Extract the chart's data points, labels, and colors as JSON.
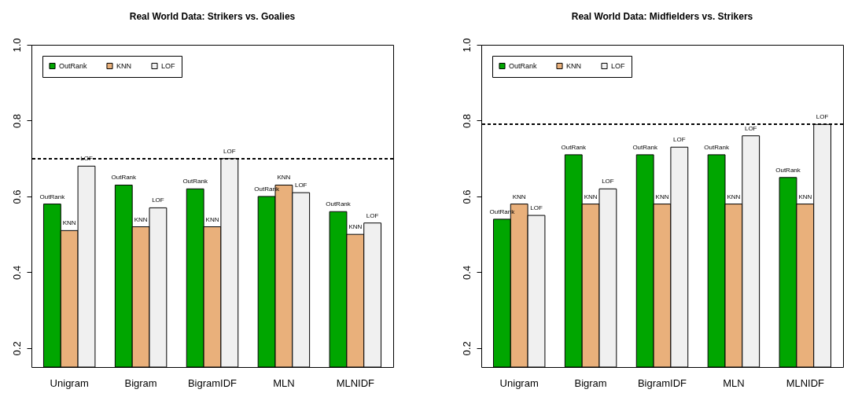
{
  "chart_data": [
    {
      "type": "bar",
      "title": "Real World Data: Strikers vs. Goalies",
      "categories": [
        "Unigram",
        "Bigram",
        "BigramIDF",
        "MLN",
        "MLNIDF"
      ],
      "series": [
        {
          "name": "OutRank",
          "color": "#00a600",
          "values": [
            0.58,
            0.63,
            0.62,
            0.6,
            0.56
          ],
          "value_labels": [
            "OutRank",
            "OutRank",
            "OutRank",
            "OutRank",
            "OutRank"
          ]
        },
        {
          "name": "KNN",
          "color": "#e9b07b",
          "values": [
            0.51,
            0.52,
            0.52,
            0.63,
            0.5
          ],
          "value_labels": [
            "KNN",
            "KNN",
            "KNN",
            "KNN",
            "KNN"
          ]
        },
        {
          "name": "LOF",
          "color": "#f0f0f0",
          "values": [
            0.68,
            0.57,
            0.7,
            0.61,
            0.53
          ],
          "value_labels": [
            "LOF",
            "LOF",
            "LOF",
            "LOF",
            "LOF"
          ]
        }
      ],
      "ylim": [
        0.15,
        1.0
      ],
      "yticks": [
        0.2,
        0.4,
        0.6,
        0.8,
        {
          "value": 1,
          "label": "1.0"
        }
      ],
      "grid": false,
      "legend": "top left",
      "ref_lines": [
        {
          "axis": "y",
          "value": 0.7,
          "line_style": "dashed"
        }
      ]
    },
    {
      "type": "bar",
      "title": "Real World Data: Midfielders vs. Strikers",
      "categories": [
        "Unigram",
        "Bigram",
        "BigramIDF",
        "MLN",
        "MLNIDF"
      ],
      "series": [
        {
          "name": "OutRank",
          "color": "#00a600",
          "values": [
            0.54,
            0.71,
            0.71,
            0.71,
            0.65
          ],
          "value_labels": [
            "OutRank",
            "OutRank",
            "OutRank",
            "OutRank",
            "OutRank"
          ]
        },
        {
          "name": "KNN",
          "color": "#e9b07b",
          "values": [
            0.58,
            0.58,
            0.58,
            0.58,
            0.58
          ],
          "value_labels": [
            "KNN",
            "KNN",
            "KNN",
            "KNN",
            "KNN"
          ]
        },
        {
          "name": "LOF",
          "color": "#f0f0f0",
          "values": [
            0.55,
            0.62,
            0.73,
            0.76,
            0.79
          ],
          "value_labels": [
            "LOF",
            "LOF",
            "LOF",
            "LOF",
            "LOF"
          ]
        }
      ],
      "ylim": [
        0.15,
        1.0
      ],
      "yticks": [
        0.2,
        0.4,
        0.6,
        0.8,
        {
          "value": 1,
          "label": "1.0"
        }
      ],
      "grid": false,
      "legend": "top left",
      "ref_lines": [
        {
          "axis": "y",
          "value": 0.79,
          "line_style": "dashed"
        }
      ]
    }
  ]
}
